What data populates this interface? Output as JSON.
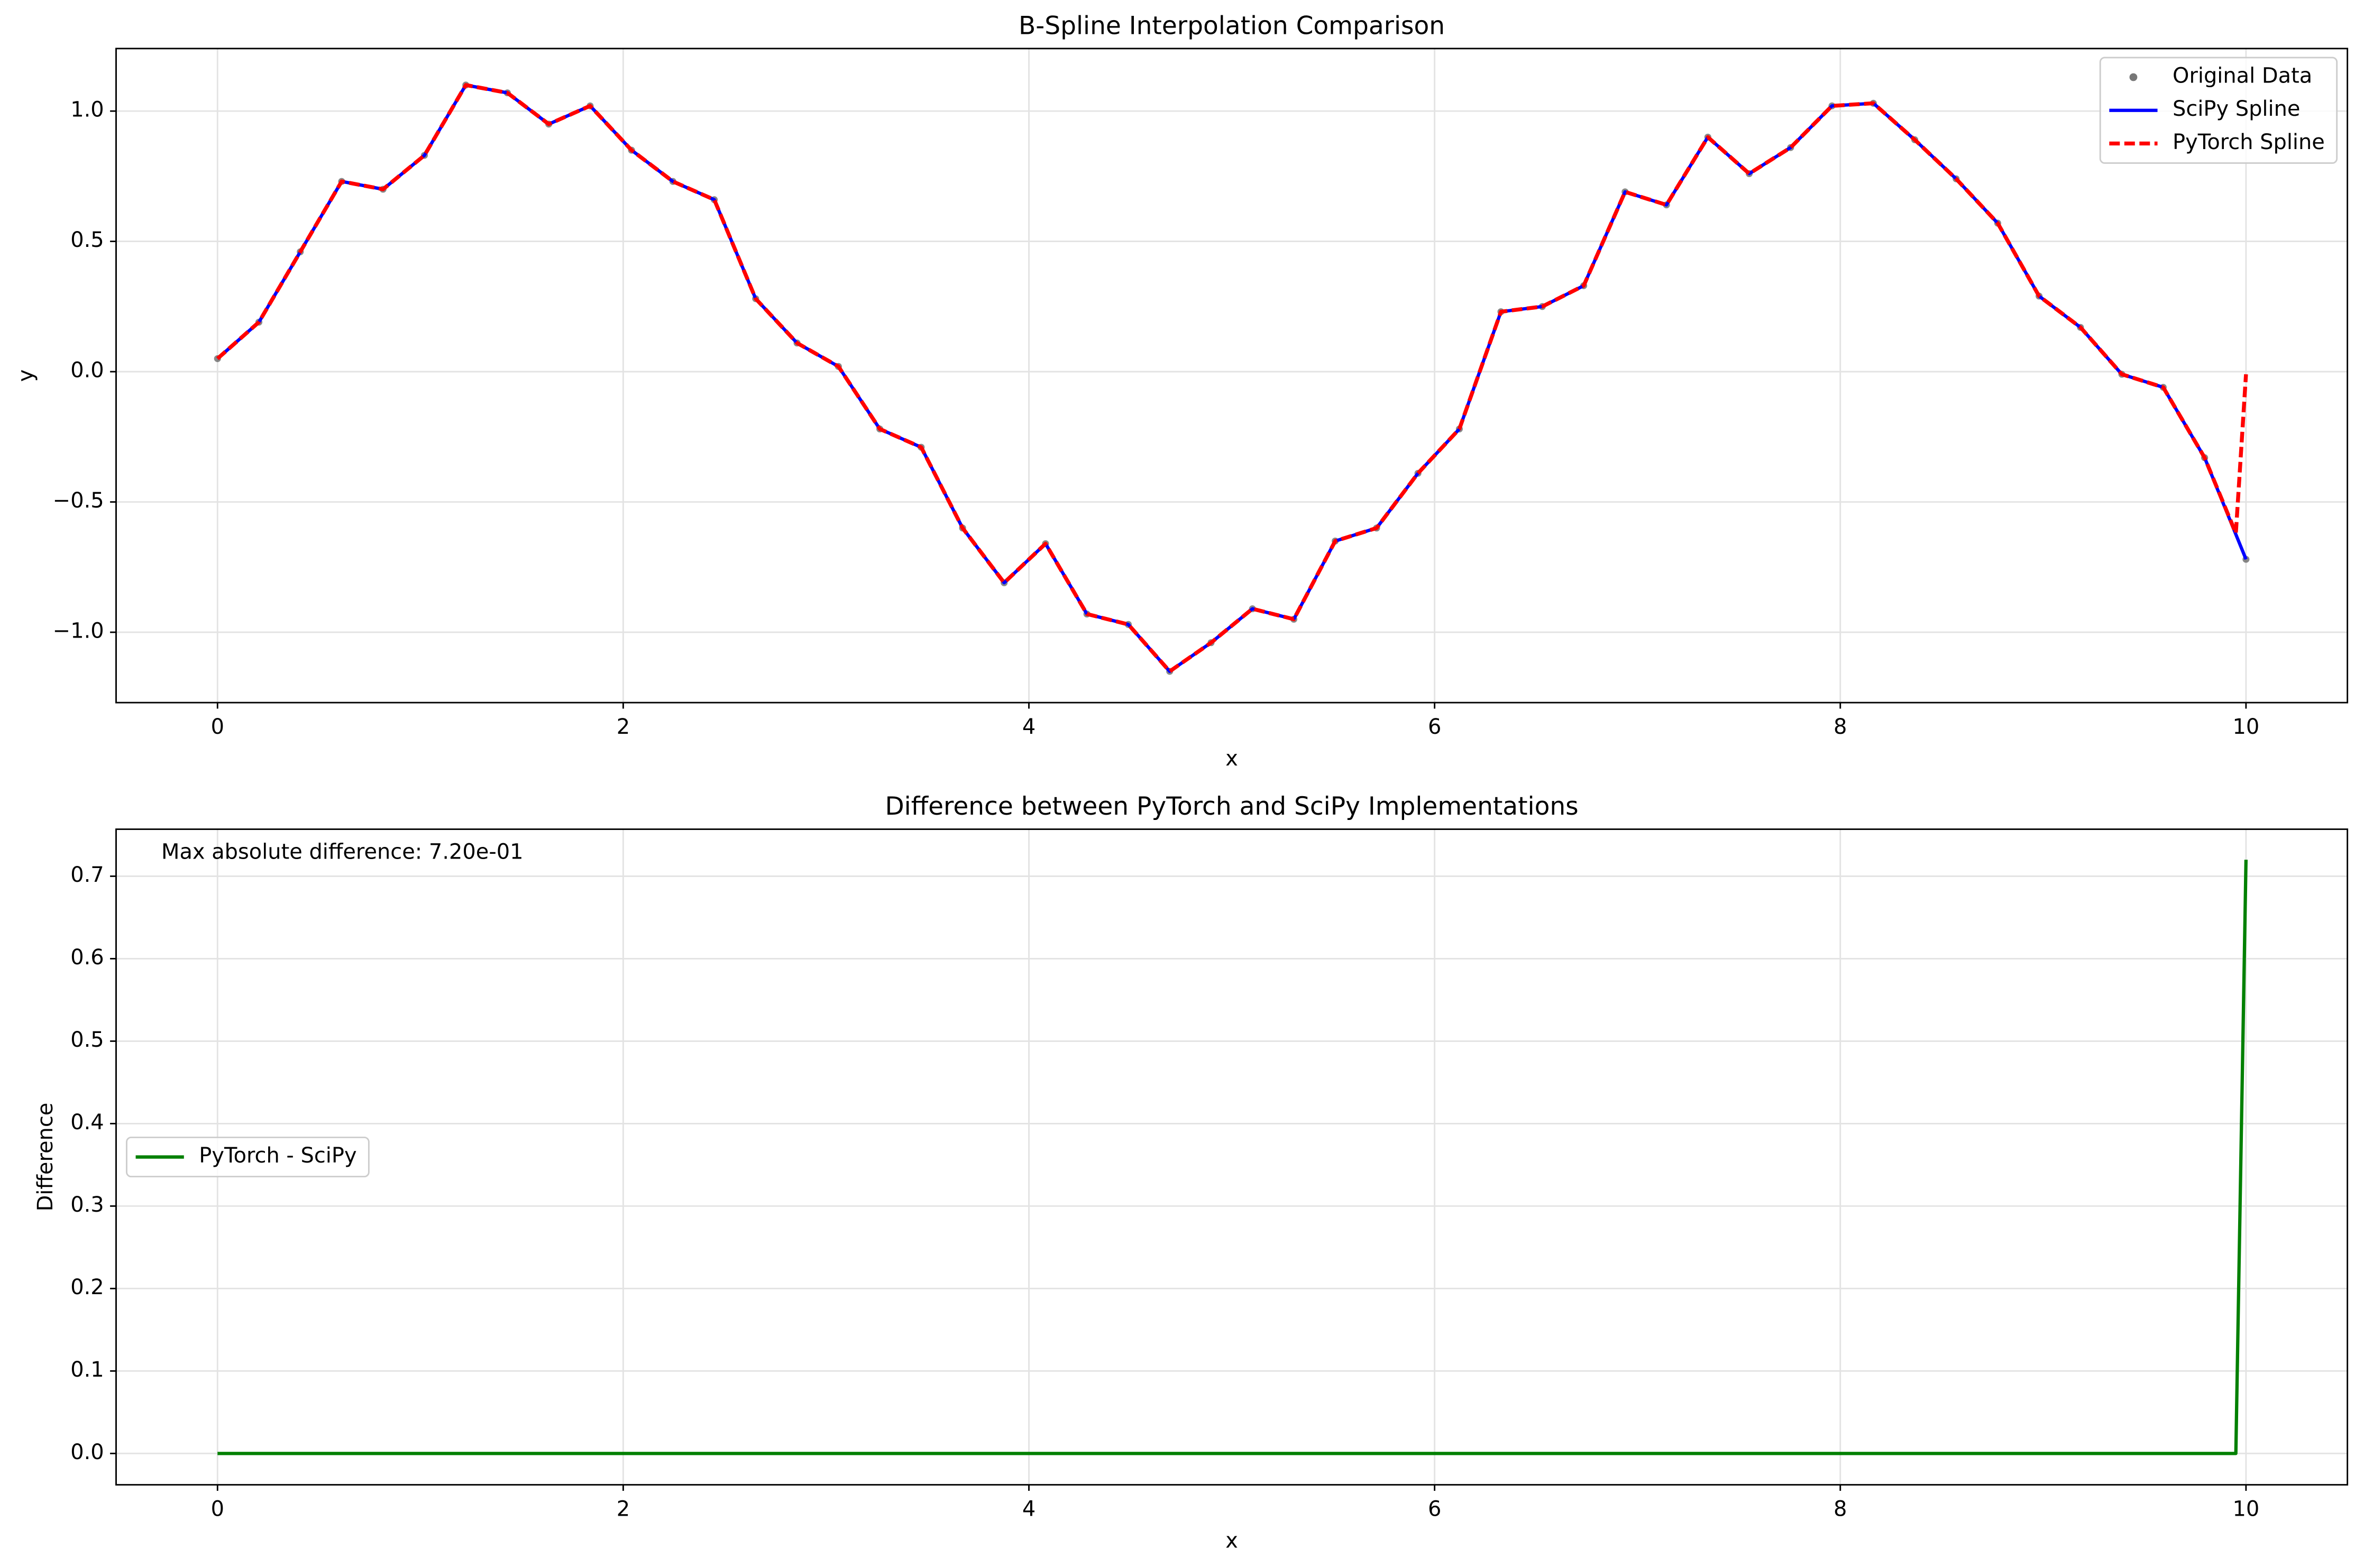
{
  "chart_data": [
    {
      "type": "line",
      "title": "B-Spline Interpolation Comparison",
      "xlabel": "x",
      "ylabel": "y",
      "xlim": [
        -0.5,
        10.5
      ],
      "ylim": [
        -1.27,
        1.24
      ],
      "xticks": [
        0,
        2,
        4,
        6,
        8,
        10
      ],
      "yticks": [
        {
          "value": -1,
          "label": "−1.0"
        },
        {
          "value": -0.5,
          "label": "−0.5"
        },
        {
          "value": 0,
          "label": "0.0"
        },
        0.5,
        {
          "value": 1,
          "label": "1.0"
        }
      ],
      "grid": true,
      "legend": "upper right",
      "series": [
        {
          "name": "Original Data",
          "color": "#555555",
          "linestyle": "none",
          "marker": "o",
          "x": [
            0,
            0.204,
            0.408,
            0.612,
            0.816,
            1.02,
            1.224,
            1.429,
            1.633,
            1.837,
            2.041,
            2.245,
            2.449,
            2.653,
            2.857,
            3.061,
            3.265,
            3.469,
            3.673,
            3.878,
            4.082,
            4.286,
            4.49,
            4.694,
            4.898,
            5.102,
            5.306,
            5.51,
            5.714,
            5.918,
            6.122,
            6.327,
            6.531,
            6.735,
            6.939,
            7.143,
            7.347,
            7.551,
            7.755,
            7.959,
            8.163,
            8.367,
            8.571,
            8.776,
            8.98,
            9.184,
            9.388,
            9.592,
            9.796,
            10
          ],
          "values": [
            0.05,
            0.19,
            0.46,
            0.73,
            0.7,
            0.83,
            1.1,
            1.07,
            0.95,
            1.02,
            0.85,
            0.73,
            0.66,
            0.28,
            0.11,
            0.02,
            -0.22,
            -0.29,
            -0.6,
            -0.81,
            -0.66,
            -0.93,
            -0.97,
            -1.15,
            -1.04,
            -0.91,
            -0.95,
            -0.65,
            -0.6,
            -0.39,
            -0.22,
            0.23,
            0.25,
            0.33,
            0.69,
            0.64,
            0.9,
            0.76,
            0.86,
            1.02,
            1.03,
            0.89,
            0.74,
            0.57,
            0.29,
            0.17,
            -0.01,
            -0.06,
            -0.33,
            -0.72
          ]
        },
        {
          "name": "SciPy Spline",
          "color": "#0000ff",
          "linestyle": "solid",
          "x": [
            0,
            0.204,
            0.408,
            0.612,
            0.816,
            1.02,
            1.224,
            1.429,
            1.633,
            1.837,
            2.041,
            2.245,
            2.449,
            2.653,
            2.857,
            3.061,
            3.265,
            3.469,
            3.673,
            3.878,
            4.082,
            4.286,
            4.49,
            4.694,
            4.898,
            5.102,
            5.306,
            5.51,
            5.714,
            5.918,
            6.122,
            6.327,
            6.531,
            6.735,
            6.939,
            7.143,
            7.347,
            7.551,
            7.755,
            7.959,
            8.163,
            8.367,
            8.571,
            8.776,
            8.98,
            9.184,
            9.388,
            9.592,
            9.796,
            10
          ],
          "values": [
            0.05,
            0.19,
            0.46,
            0.73,
            0.7,
            0.83,
            1.1,
            1.07,
            0.95,
            1.02,
            0.85,
            0.73,
            0.66,
            0.28,
            0.11,
            0.02,
            -0.22,
            -0.29,
            -0.6,
            -0.81,
            -0.66,
            -0.93,
            -0.97,
            -1.15,
            -1.04,
            -0.91,
            -0.95,
            -0.65,
            -0.6,
            -0.39,
            -0.22,
            0.23,
            0.25,
            0.33,
            0.69,
            0.64,
            0.9,
            0.76,
            0.86,
            1.02,
            1.03,
            0.89,
            0.74,
            0.57,
            0.29,
            0.17,
            -0.01,
            -0.06,
            -0.33,
            -0.72
          ]
        },
        {
          "name": "PyTorch Spline",
          "color": "#ff0000",
          "linestyle": "dashed",
          "x": [
            0,
            0.204,
            0.408,
            0.612,
            0.816,
            1.02,
            1.224,
            1.429,
            1.633,
            1.837,
            2.041,
            2.245,
            2.449,
            2.653,
            2.857,
            3.061,
            3.265,
            3.469,
            3.673,
            3.878,
            4.082,
            4.286,
            4.49,
            4.694,
            4.898,
            5.102,
            5.306,
            5.51,
            5.714,
            5.918,
            6.122,
            6.327,
            6.531,
            6.735,
            6.939,
            7.143,
            7.347,
            7.551,
            7.755,
            7.959,
            8.163,
            8.367,
            8.571,
            8.776,
            8.98,
            9.184,
            9.388,
            9.592,
            9.796,
            9.95,
            10
          ],
          "values": [
            0.05,
            0.19,
            0.46,
            0.73,
            0.7,
            0.83,
            1.1,
            1.07,
            0.95,
            1.02,
            0.85,
            0.73,
            0.66,
            0.28,
            0.11,
            0.02,
            -0.22,
            -0.29,
            -0.6,
            -0.81,
            -0.66,
            -0.93,
            -0.97,
            -1.15,
            -1.04,
            -0.91,
            -0.95,
            -0.65,
            -0.6,
            -0.39,
            -0.22,
            0.23,
            0.25,
            0.33,
            0.69,
            0.64,
            0.9,
            0.76,
            0.86,
            1.02,
            1.03,
            0.89,
            0.74,
            0.57,
            0.29,
            0.17,
            -0.01,
            -0.06,
            -0.33,
            -0.62,
            -0.01
          ]
        }
      ]
    },
    {
      "type": "line",
      "title": "Difference between PyTorch and SciPy Implementations",
      "xlabel": "x",
      "ylabel": "Difference",
      "annotation": "Max absolute difference: 7.20e-01",
      "xlim": [
        -0.5,
        10.5
      ],
      "ylim": [
        -0.038,
        0.757
      ],
      "xticks": [
        0,
        2,
        4,
        6,
        8,
        10
      ],
      "yticks": [
        {
          "value": 0,
          "label": "0.0"
        },
        0.1,
        0.2,
        0.3,
        0.4,
        0.5,
        0.6,
        0.7
      ],
      "grid": true,
      "legend": "center left",
      "series": [
        {
          "name": "PyTorch - SciPy",
          "color": "#008000",
          "linestyle": "solid",
          "x": [
            0,
            9.95,
            10
          ],
          "values": [
            0,
            0,
            0.72
          ]
        }
      ]
    }
  ]
}
